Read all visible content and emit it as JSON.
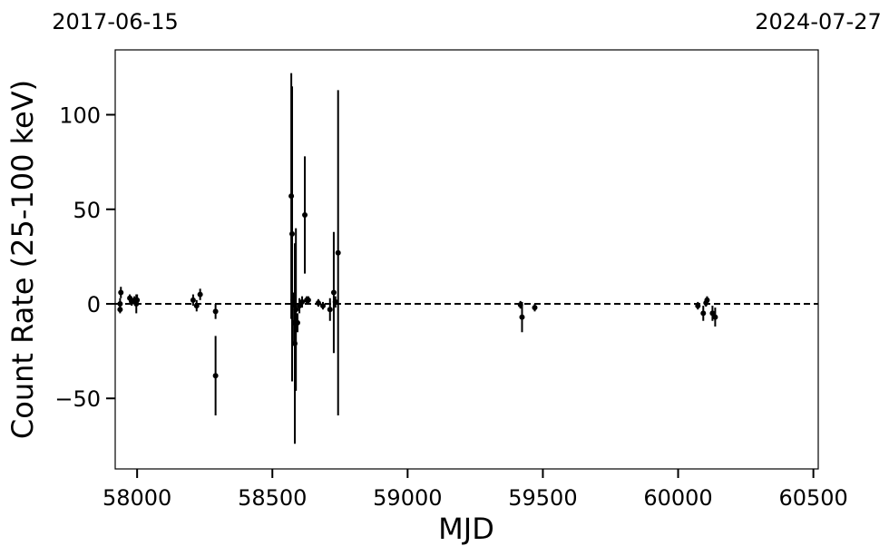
{
  "chart_data": {
    "type": "errorbar",
    "xlabel": "MJD",
    "ylabel": "Count Rate (25-100 keV)",
    "xlim": [
      57919,
      60518
    ],
    "ylim": [
      -87.3,
      134.3
    ],
    "xticks": [
      58000,
      58500,
      59000,
      59500,
      60000,
      60500
    ],
    "yticks": [
      {
        "value": -50,
        "label": "−50"
      },
      0,
      50,
      100
    ],
    "x2ticks": [
      {
        "value": 57919,
        "label": "2017-06-15"
      },
      {
        "value": 60518,
        "label": "2024-07-27"
      }
    ],
    "hline": 0,
    "series": [
      {
        "color": "#000000",
        "x": [
          57937,
          57937,
          57940,
          57973,
          57980,
          57990,
          57997,
          58000,
          58207,
          58220,
          58233,
          58290,
          58290,
          58570,
          58573,
          58577,
          58580,
          58583,
          58587,
          58593,
          58600,
          58610,
          58620,
          58627,
          58633,
          58670,
          58687,
          58713,
          58727,
          58733,
          58743,
          59417,
          59423,
          59470,
          60073,
          60093,
          60103,
          60107,
          60127,
          60137
        ],
        "values": [
          0,
          -3,
          6,
          3,
          1,
          2,
          0,
          2,
          2,
          -1,
          5,
          -4,
          -38,
          57,
          37,
          2,
          -10,
          -21,
          -3,
          -10,
          -1,
          1,
          47,
          2,
          2,
          0.5,
          -1,
          -3,
          6,
          1,
          27,
          -0.5,
          -7,
          -2,
          -1,
          -5,
          0.5,
          2,
          -5,
          -7
        ],
        "errors": [
          3,
          2,
          3,
          2,
          2,
          2,
          5,
          3,
          3,
          3,
          3,
          4,
          21,
          65,
          78,
          4,
          10,
          53,
          43,
          5,
          4,
          3,
          31,
          2,
          2,
          2,
          2,
          6,
          32,
          3,
          86,
          2,
          8,
          2,
          2,
          4,
          2,
          2,
          4,
          5
        ]
      }
    ]
  }
}
